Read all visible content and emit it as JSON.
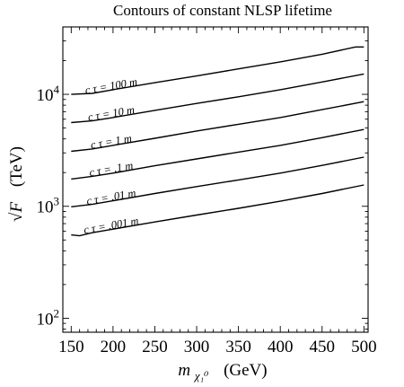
{
  "chart_data": {
    "type": "line",
    "title": "Contours of constant NLSP lifetime",
    "xlabel": {
      "symbol": "m",
      "subscript": "χ₁⁰",
      "unit": "(GeV)"
    },
    "ylabel": {
      "symbol": "√F",
      "unit": "(TeV)"
    },
    "xlim": [
      140,
      505
    ],
    "ylim": [
      75,
      40000
    ],
    "yscale": "log",
    "grid": false,
    "x_ticks": [
      150,
      200,
      250,
      300,
      350,
      400,
      450,
      500
    ],
    "y_ticks": [
      {
        "value": 100,
        "base": "10",
        "exp": "2"
      },
      {
        "value": 1000,
        "base": "10",
        "exp": "3"
      },
      {
        "value": 10000,
        "base": "10",
        "exp": "4"
      }
    ],
    "series": [
      {
        "name": "c τ = 100 m",
        "label_x": 177,
        "x": [
          150,
          175,
          200,
          250,
          300,
          350,
          400,
          450,
          490,
          500
        ],
        "y": [
          10000,
          10200,
          11000,
          12700,
          14600,
          16900,
          19500,
          22800,
          26500,
          26500
        ]
      },
      {
        "name": "c τ = 10 m",
        "label_x": 177,
        "x": [
          150,
          175,
          200,
          250,
          300,
          350,
          400,
          450,
          500
        ],
        "y": [
          5600,
          5800,
          6200,
          7200,
          8300,
          9500,
          11000,
          12900,
          15200
        ]
      },
      {
        "name": "c τ = 1 m",
        "label_x": 177,
        "x": [
          150,
          175,
          200,
          250,
          300,
          350,
          400,
          450,
          500
        ],
        "y": [
          3100,
          3250,
          3500,
          4050,
          4700,
          5400,
          6200,
          7300,
          8600
        ]
      },
      {
        "name": "c τ = .1 m",
        "label_x": 177,
        "x": [
          150,
          175,
          200,
          250,
          300,
          350,
          400,
          450,
          500
        ],
        "y": [
          1750,
          1850,
          1980,
          2300,
          2650,
          3050,
          3500,
          4100,
          4850
        ]
      },
      {
        "name": "c τ = .01 m",
        "label_x": 177,
        "x": [
          150,
          175,
          200,
          250,
          300,
          350,
          400,
          450,
          500
        ],
        "y": [
          990,
          1040,
          1120,
          1300,
          1500,
          1720,
          1980,
          2320,
          2750
        ]
      },
      {
        "name": "c τ = .001 m",
        "label_x": 177,
        "x": [
          150,
          160,
          175,
          200,
          250,
          300,
          350,
          400,
          450,
          500
        ],
        "y": [
          555,
          545,
          580,
          625,
          725,
          835,
          960,
          1110,
          1300,
          1550
        ]
      }
    ]
  }
}
